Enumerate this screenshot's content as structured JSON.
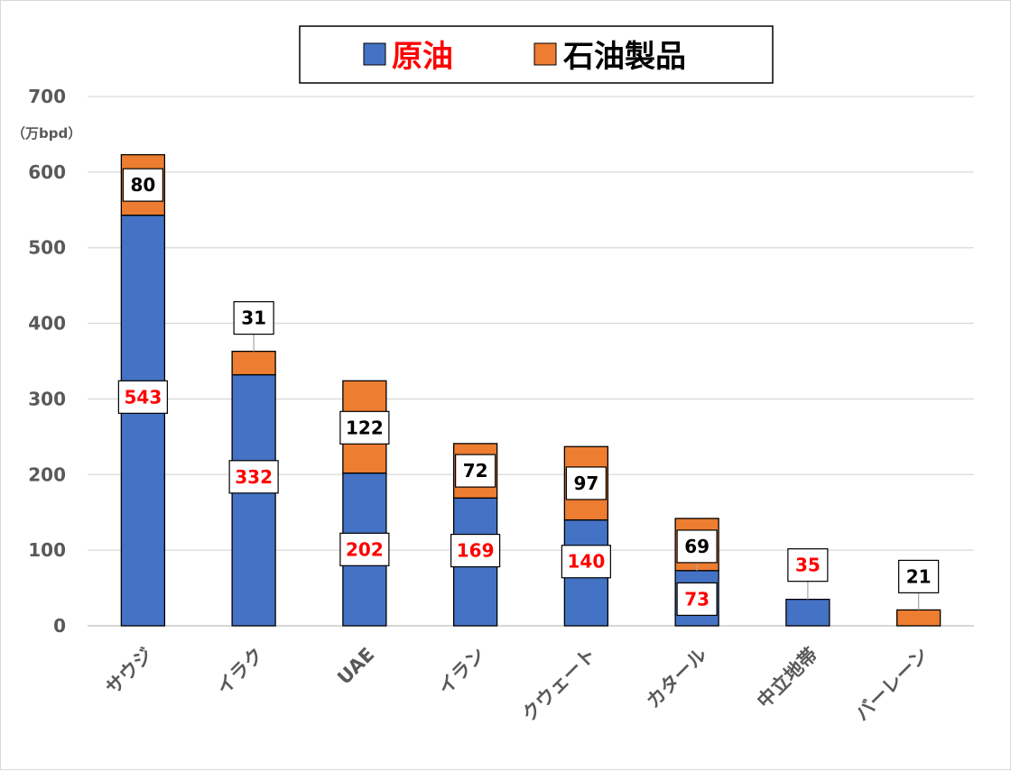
{
  "chart_data": {
    "type": "bar",
    "stacked": true,
    "unit_label": "（万bpd）",
    "categories": [
      "サウジ",
      "イラク",
      "UAE",
      "イラン",
      "クウェート",
      "カタール",
      "中立地帯",
      "バーレーン"
    ],
    "series": [
      {
        "name": "原油",
        "color": "#4472c4",
        "label_color": "#ff0000",
        "values": [
          543,
          332,
          202,
          169,
          140,
          73,
          35,
          0
        ]
      },
      {
        "name": "石油製品",
        "color": "#ed7d31",
        "label_color": "#000000",
        "values": [
          80,
          31,
          122,
          72,
          97,
          69,
          0,
          21
        ]
      }
    ],
    "data_labels": {
      "原油": [
        "543",
        "332",
        "202",
        "169",
        "140",
        "73",
        "35",
        ""
      ],
      "石油製品": [
        "80",
        "31",
        "122",
        "72",
        "97",
        "69",
        "",
        "21"
      ]
    },
    "ylim": [
      0,
      700
    ],
    "yticks": [
      0,
      100,
      200,
      300,
      400,
      500,
      600,
      700
    ],
    "grid": true,
    "legend_position": "top"
  }
}
